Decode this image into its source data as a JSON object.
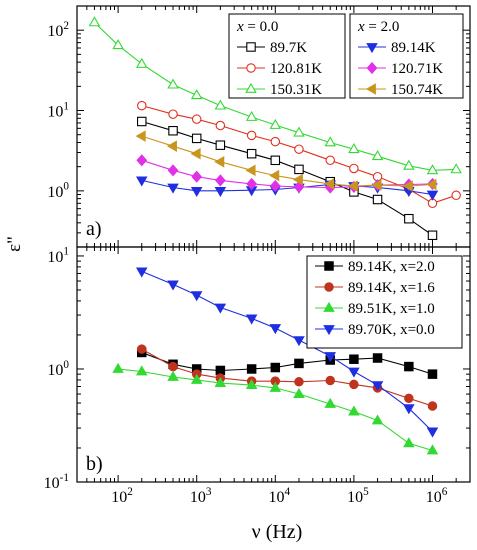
{
  "figure": {
    "ylabel": "ε\"",
    "xlabel": "ν (Hz)"
  },
  "chart_data": [
    {
      "type": "line",
      "panel_label": "a)",
      "xscale": "log",
      "yscale": "log",
      "xlim": [
        30,
        3000000
      ],
      "ylim": [
        0.2,
        200
      ],
      "xticks": [
        {
          "v": 100,
          "m": "10",
          "e": "2"
        },
        {
          "v": 1000,
          "m": "10",
          "e": "3"
        },
        {
          "v": 10000,
          "m": "10",
          "e": "4"
        },
        {
          "v": 100000,
          "m": "10",
          "e": "5"
        },
        {
          "v": 1000000,
          "m": "10",
          "e": "6"
        }
      ],
      "yticks": [
        {
          "v": 1,
          "m": "10",
          "e": "0"
        },
        {
          "v": 10,
          "m": "10",
          "e": "1"
        },
        {
          "v": 100,
          "m": "10",
          "e": "2"
        }
      ],
      "show_x_ticklabels": false,
      "legends": [
        {
          "title_var": "x",
          "title_val": " = 0.0",
          "items": [
            {
              "name": "89.7K",
              "color": "#000000",
              "marker": "square",
              "filled": false
            },
            {
              "name": "120.81K",
              "color": "#e0301e",
              "marker": "circle",
              "filled": false
            },
            {
              "name": "150.31K",
              "color": "#33d933",
              "marker": "triangle-up",
              "filled": false
            }
          ]
        },
        {
          "title_var": "x",
          "title_val": " = 2.0",
          "items": [
            {
              "name": "89.14K",
              "color": "#1f2fe0",
              "marker": "triangle-down",
              "filled": true
            },
            {
              "name": "120.71K",
              "color": "#e030e8",
              "marker": "diamond",
              "filled": true
            },
            {
              "name": "150.74K",
              "color": "#c8961e",
              "marker": "triangle-left",
              "filled": true
            }
          ]
        }
      ],
      "series": [
        {
          "name": "89.7K",
          "color": "#000000",
          "marker": "square",
          "filled": false,
          "x": [
            200,
            500,
            1000,
            2000,
            5000,
            10000,
            20000,
            50000,
            100000,
            200000,
            500000,
            1000000
          ],
          "y": [
            7.3,
            5.6,
            4.5,
            3.7,
            2.9,
            2.4,
            1.85,
            1.3,
            0.97,
            0.78,
            0.45,
            0.28
          ]
        },
        {
          "name": "120.81K",
          "color": "#e0301e",
          "marker": "circle",
          "filled": false,
          "x": [
            200,
            500,
            1000,
            2000,
            5000,
            10000,
            20000,
            50000,
            100000,
            200000,
            500000,
            1000000,
            2000000
          ],
          "y": [
            11.5,
            9.0,
            7.8,
            6.5,
            4.9,
            4.1,
            3.3,
            2.4,
            1.9,
            1.5,
            1.05,
            0.7,
            0.88
          ]
        },
        {
          "name": "150.31K",
          "color": "#33d933",
          "marker": "triangle-up",
          "filled": false,
          "x": [
            50,
            100,
            200,
            500,
            1000,
            2000,
            5000,
            10000,
            20000,
            50000,
            100000,
            200000,
            500000,
            1000000,
            2000000
          ],
          "y": [
            125,
            65,
            38,
            21,
            15.5,
            11.5,
            8.3,
            6.6,
            5.3,
            4.0,
            3.3,
            2.7,
            2.05,
            1.8,
            1.85
          ]
        },
        {
          "name": "89.14K",
          "color": "#1f2fe0",
          "marker": "triangle-down",
          "filled": true,
          "x": [
            200,
            500,
            1000,
            2000,
            5000,
            10000,
            20000,
            50000,
            100000,
            200000,
            500000,
            1000000
          ],
          "y": [
            1.35,
            1.1,
            1.0,
            1.0,
            1.02,
            1.04,
            1.1,
            1.2,
            1.15,
            1.1,
            1.0,
            0.9
          ]
        },
        {
          "name": "120.71K",
          "color": "#e030e8",
          "marker": "diamond",
          "filled": true,
          "x": [
            200,
            500,
            1000,
            2000,
            5000,
            10000,
            20000,
            50000,
            100000,
            200000,
            500000,
            1000000
          ],
          "y": [
            2.4,
            1.8,
            1.5,
            1.35,
            1.22,
            1.15,
            1.12,
            1.1,
            1.12,
            1.18,
            1.2,
            1.22
          ]
        },
        {
          "name": "150.74K",
          "color": "#c8961e",
          "marker": "triangle-left",
          "filled": true,
          "x": [
            200,
            500,
            1000,
            2000,
            5000,
            10000,
            20000,
            50000,
            100000,
            200000,
            500000,
            1000000
          ],
          "y": [
            4.8,
            3.6,
            2.9,
            2.3,
            1.8,
            1.55,
            1.38,
            1.22,
            1.15,
            1.18,
            1.15,
            1.2
          ]
        }
      ]
    },
    {
      "type": "line",
      "panel_label": "b)",
      "xscale": "log",
      "yscale": "log",
      "xlim": [
        30,
        3000000
      ],
      "ylim": [
        0.1,
        12
      ],
      "xticks": [
        {
          "v": 100,
          "m": "10",
          "e": "2"
        },
        {
          "v": 1000,
          "m": "10",
          "e": "3"
        },
        {
          "v": 10000,
          "m": "10",
          "e": "4"
        },
        {
          "v": 100000,
          "m": "10",
          "e": "5"
        },
        {
          "v": 1000000,
          "m": "10",
          "e": "6"
        }
      ],
      "yticks": [
        {
          "v": 0.1,
          "m": "10",
          "e": "-1"
        },
        {
          "v": 1,
          "m": "10",
          "e": "0"
        },
        {
          "v": 10,
          "m": "10",
          "e": "1"
        }
      ],
      "show_x_ticklabels": true,
      "legends": [
        {
          "title_var": "",
          "title_val": "",
          "items": [
            {
              "name": "89.14K, x=2.0",
              "color": "#000000",
              "marker": "square",
              "filled": true
            },
            {
              "name": "89.14K, x=1.6",
              "color": "#c0341e",
              "marker": "circle",
              "filled": true
            },
            {
              "name": "89.51K, x=1.0",
              "color": "#33d933",
              "marker": "triangle-up",
              "filled": true
            },
            {
              "name": "89.70K, x=0.0",
              "color": "#1f2fe0",
              "marker": "triangle-down",
              "filled": true
            }
          ]
        }
      ],
      "series": [
        {
          "name": "89.14K, x=2.0",
          "color": "#000000",
          "marker": "square",
          "filled": true,
          "x": [
            200,
            500,
            1000,
            2000,
            5000,
            10000,
            20000,
            50000,
            100000,
            200000,
            500000,
            1000000
          ],
          "y": [
            1.4,
            1.1,
            1.0,
            0.97,
            1.0,
            1.03,
            1.12,
            1.2,
            1.22,
            1.25,
            1.05,
            0.9
          ]
        },
        {
          "name": "89.14K, x=1.6",
          "color": "#c0341e",
          "marker": "circle",
          "filled": true,
          "x": [
            200,
            500,
            1000,
            2000,
            5000,
            10000,
            20000,
            50000,
            100000,
            200000,
            500000,
            1000000
          ],
          "y": [
            1.5,
            1.05,
            0.9,
            0.83,
            0.78,
            0.78,
            0.77,
            0.79,
            0.73,
            0.68,
            0.55,
            0.47
          ]
        },
        {
          "name": "89.51K, x=1.0",
          "color": "#33d933",
          "marker": "triangle-up",
          "filled": true,
          "x": [
            100,
            200,
            500,
            1000,
            2000,
            5000,
            10000,
            20000,
            50000,
            100000,
            200000,
            500000,
            1000000
          ],
          "y": [
            1.0,
            0.95,
            0.85,
            0.8,
            0.75,
            0.72,
            0.68,
            0.6,
            0.49,
            0.42,
            0.35,
            0.22,
            0.19
          ]
        },
        {
          "name": "89.70K, x=0.0",
          "color": "#1f2fe0",
          "marker": "triangle-down",
          "filled": true,
          "x": [
            200,
            500,
            1000,
            2000,
            5000,
            10000,
            20000,
            50000,
            100000,
            200000,
            500000,
            1000000
          ],
          "y": [
            7.3,
            5.6,
            4.5,
            3.5,
            2.8,
            2.3,
            1.8,
            1.3,
            0.95,
            0.72,
            0.45,
            0.28
          ]
        }
      ]
    }
  ]
}
